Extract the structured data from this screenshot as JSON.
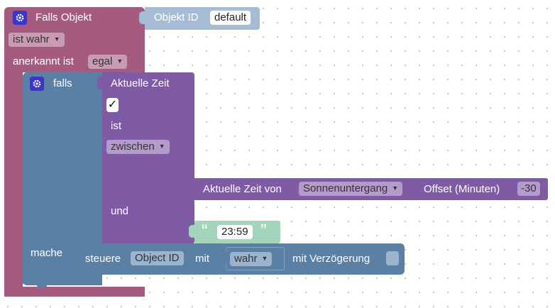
{
  "trigger_block": {
    "title": "Falls Objekt",
    "object_id_label": "Objekt ID",
    "object_id_value": "default",
    "condition_value": "ist wahr",
    "ack_label": "anerkannt ist",
    "ack_value": "egal"
  },
  "if_block": {
    "falls_label": "falls",
    "do_label": "mache"
  },
  "time_compare_block": {
    "title": "Aktuelle Zeit",
    "check_mark": "✓",
    "is_label": "ist",
    "operator_value": "zwischen",
    "and_label": "und"
  },
  "astro_block": {
    "label": "Aktuelle Zeit von",
    "event_value": "Sonnenuntergang",
    "offset_label": "Offset (Minuten)",
    "offset_value": "-30"
  },
  "text_block": {
    "open_quote": "“",
    "value": "23:59",
    "close_quote": "”"
  },
  "control_block": {
    "label": "steuere",
    "object_id_value": "Object ID",
    "with_label": "mit",
    "value_dropdown": "wahr",
    "delay_label": "mit Verzögerung"
  },
  "icons": {
    "gear": "gear-icon",
    "dropdown": "dropdown-arrow-icon"
  },
  "colors": {
    "trigger": "#a55b80",
    "logic": "#5b80a5",
    "time": "#805ba5",
    "object_id": "#a5bcd4",
    "text": "#a5d4bc"
  }
}
